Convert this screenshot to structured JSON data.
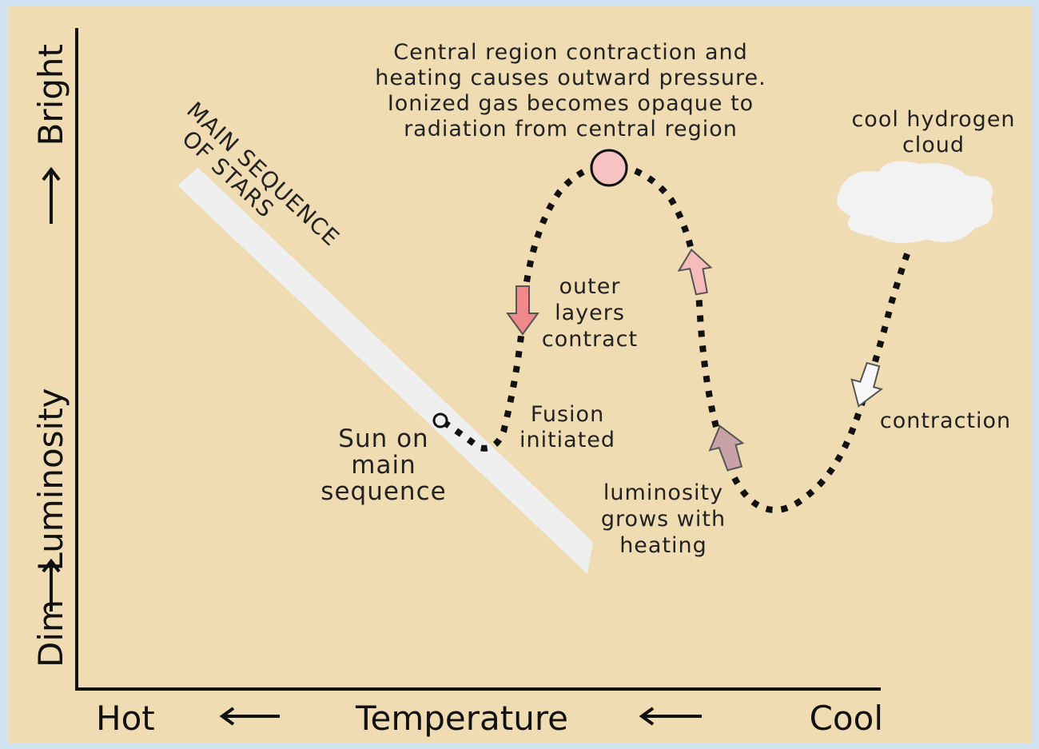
{
  "axes": {
    "y_labels": [
      "Dim",
      "Luminosity",
      "Bright"
    ],
    "x_labels": [
      "Hot",
      "Temperature",
      "Cool"
    ]
  },
  "main_sequence": {
    "label_lines": [
      "MAIN SEQUENCE",
      "OF STARS"
    ]
  },
  "annotations": {
    "central_region": [
      "Central region contraction and",
      "heating causes outward pressure.",
      "Ionized gas becomes opaque to",
      "radiation from central region"
    ],
    "cloud": [
      "cool hydrogen",
      "cloud"
    ],
    "outer_layers": [
      "outer",
      "layers",
      "contract"
    ],
    "fusion": [
      "Fusion",
      "initiated"
    ],
    "sun": [
      "Sun on",
      "main",
      "sequence"
    ],
    "luminosity": [
      "luminosity",
      "grows with",
      "heating"
    ],
    "contraction": [
      "contraction"
    ]
  }
}
